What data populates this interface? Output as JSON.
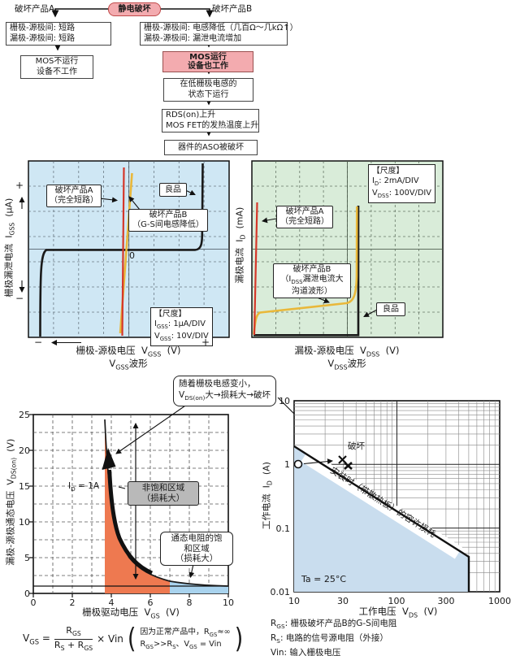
{
  "flowchart": {
    "root_label": "静电破坏",
    "branch_a_label": "破坏产品A",
    "branch_b_label": "破坏产品B",
    "box_a1": [
      "栅极-源极间: 短路",
      "漏极-源极间: 短路"
    ],
    "box_a2": [
      "MOS不运行",
      "设备不工作"
    ],
    "box_b1": [
      "栅极-源极间: 电感降低（几百Ω～几kΩ↑）",
      "漏极-源极间: 漏泄电流增加"
    ],
    "box_b2": [
      "MOS运行",
      "设备也工作"
    ],
    "box_b3": [
      "在低栅极电感的",
      "状态下运行"
    ],
    "box_b4": [
      "RDS(on)上升",
      "MOS FET的发热温度上升"
    ],
    "box_b5": "器件的ASO被破坏"
  },
  "vgss_chart": {
    "y_label": "栅极漏泄电流&nbsp;&nbsp;I<sub>GSS</sub>&nbsp;&nbsp;(μA)",
    "x_label": "栅极-源极电压&nbsp;&nbsp;V<sub>GSS</sub>&nbsp;&nbsp;(V)",
    "caption": "V<sub>GSS</sub>波形",
    "zero_label": "0",
    "plus": "+",
    "minus": "−",
    "ann_a": [
      "破坏产品A",
      "（完全短路）"
    ],
    "ann_b": [
      "破坏产品B",
      "（G-S间电感降低）"
    ],
    "good_label": "良品",
    "scale_box": [
      "【尺度】",
      "I<sub>GSS</sub>: 1μA/DIV",
      "V<sub>GSS</sub>: 10V/DIV"
    ]
  },
  "vdss_chart": {
    "y_label": "漏极电流&nbsp;&nbsp;I<sub>D</sub>&nbsp;&nbsp;(mA)",
    "x_label": "漏极-源极电压&nbsp;&nbsp;V<sub>DSS</sub>&nbsp;&nbsp;(V)",
    "caption": "V<sub>DSS</sub>波形",
    "ann_a": [
      "破坏产品A",
      "（完全短路）"
    ],
    "ann_b": [
      "破坏产品B",
      "（I<sub>DSS</sub>漏泄电流大",
      "沟道波形）"
    ],
    "good_label": "良品",
    "scale_box": [
      "【尺度】",
      "I<sub>D</sub>: 2mA/DIV",
      "V<sub>DSS</sub>: 100V/DIV"
    ]
  },
  "callout": {
    "line1": "随着栅极电感变小，",
    "line2": "V<sub>DS(on)</sub>大→损耗大→破坏"
  },
  "vdson_chart": {
    "y_label": "漏极-源极通态电压&nbsp;&nbsp;V<sub>DS(on)</sub>&nbsp;&nbsp;(V)",
    "x_label": "栅极驱动电压&nbsp;&nbsp;V<sub>GS</sub>&nbsp;&nbsp;(V)",
    "y_ticks": [
      "25",
      "20",
      "15",
      "10",
      "5",
      "0"
    ],
    "x_ticks": [
      "0",
      "2",
      "4",
      "6",
      "8",
      "10"
    ],
    "id_label": "I<sub>D</sub> = 1A",
    "region1": [
      "非饱和区域",
      "（损耗大）"
    ],
    "region2": [
      "通态电阻的饱",
      "和区域",
      "（损耗大）"
    ]
  },
  "formula": {
    "lhs": "V<sub>GS</sub> =",
    "num": "R<sub>GS</sub>",
    "den": "R<sub>S</sub> + R<sub>GS</sub>",
    "mult": "× Vin",
    "paren_open": "(",
    "paren_close": ")",
    "note1": "因为正常产品中，R<sub>GS</sub>≈∞",
    "note2": "R<sub>GS</sub>>>R<sub>S</sub>、V<sub>GS</sub> = Vin"
  },
  "soa_chart": {
    "y_label": "工作电流&nbsp;&nbsp;I<sub>D</sub>&nbsp;&nbsp;(A)",
    "x_label": "工作电压&nbsp;&nbsp;V<sub>DS</sub>&nbsp;&nbsp;(V)",
    "y_ticks": [
      "10",
      "1",
      "0.1",
      "0.01"
    ],
    "x_ticks": [
      "10",
      "30",
      "100",
      "300",
      "1000"
    ],
    "band_label": "安装时（带散热板）的容许损耗",
    "destroy_label": "破坏",
    "ta_label": "Ta = 25°C",
    "notes": [
      "R<sub>GS</sub>: 栅极破坏产品B的G-S间电阻",
      "R<sub>S</sub>: 电路的信号源电阻（外接）",
      "Vin: 输入栅极电压"
    ]
  },
  "colors": {
    "flow_pink": "#f3abaf",
    "flow_pink_border": "#c04a4a",
    "scope_blue_bg": "#cfe7f4",
    "scope_green_bg": "#d9ecd9",
    "trace_red": "#d5372a",
    "trace_yellow": "#e9b83a",
    "trace_black": "#1a1a1a",
    "region_orange": "#ee7950",
    "region_blue": "#a9d3ee",
    "soa_fill": "#c9ddee",
    "gray_note_bg": "#b9b9b9"
  },
  "chart_data": [
    {
      "id": "vgss_waveform",
      "type": "line",
      "title": "V_GSS波形",
      "xlabel": "栅极-源极电压 V_GSS (V)",
      "ylabel": "栅极漏泄电流 I_GSS (μA)",
      "scale": {
        "I_GSS": "1μA/DIV",
        "V_GSS": "10V/DIV"
      },
      "grid": "oscilloscope dashed, 8x7 divisions",
      "series": [
        {
          "name": "良品",
          "color": "#1a1a1a",
          "points_V_uA": [
            [
              -35,
              -3.5
            ],
            [
              -34,
              -0.2
            ],
            [
              -30,
              0
            ],
            [
              28,
              0
            ],
            [
              29,
              0.3
            ],
            [
              29.5,
              3.5
            ]
          ]
        },
        {
          "name": "破坏产品A（完全短路）",
          "color": "#d5372a",
          "points_V_uA": [
            [
              -2,
              -3.4
            ],
            [
              0,
              0
            ],
            [
              2,
              3.4
            ]
          ]
        },
        {
          "name": "破坏产品B（G-S间电感降低）",
          "color": "#e9b83a",
          "points_V_uA": [
            [
              -3.4,
              -3.3
            ],
            [
              0,
              0.1
            ],
            [
              1.5,
              3.1
            ]
          ]
        }
      ]
    },
    {
      "id": "vdss_waveform",
      "type": "line",
      "title": "V_DSS波形",
      "xlabel": "漏极-源极电压 V_DSS (V)",
      "ylabel": "漏极电流 I_D (mA)",
      "scale": {
        "I_D": "2mA/DIV",
        "V_DSS": "100V/DIV"
      },
      "series": [
        {
          "name": "良品",
          "color": "#1a1a1a",
          "points_V_mA": [
            [
              0,
              0
            ],
            [
              440,
              0
            ],
            [
              440,
              10.5
            ]
          ]
        },
        {
          "name": "破坏产品A（完全短路）",
          "color": "#d5372a",
          "points_V_mA": [
            [
              10,
              0
            ],
            [
              15,
              10.6
            ]
          ]
        },
        {
          "name": "破坏产品B（IDSS漏泄电流大 沟道波形）",
          "color": "#e9b83a",
          "points_V_mA": [
            [
              0,
              0
            ],
            [
              20,
              1.8
            ],
            [
              400,
              2.7
            ],
            [
              435,
              10.3
            ]
          ]
        }
      ]
    },
    {
      "id": "vdson_vs_vgs",
      "type": "line",
      "xlabel": "栅极驱动电压 V_GS (V)",
      "ylabel": "漏极-源极通态电压 V_DS(on) (V)",
      "xlim": [
        0,
        10
      ],
      "ylim": [
        0,
        25
      ],
      "condition": "I_D = 1A",
      "series": [
        {
          "name": "V_DS(on)",
          "color": "#1a1a1a",
          "points": [
            [
              3.9,
              25
            ],
            [
              4,
              21
            ],
            [
              4.2,
              15
            ],
            [
              4.5,
              10
            ],
            [
              5,
              6
            ],
            [
              5.5,
              4
            ],
            [
              6,
              2.7
            ],
            [
              6.5,
              2
            ],
            [
              7,
              1.7
            ],
            [
              8,
              1.4
            ],
            [
              9,
              1.3
            ],
            [
              10,
              1.25
            ]
          ]
        }
      ],
      "regions": [
        {
          "name": "非饱和区域（损耗大）",
          "x_range": [
            3.9,
            7
          ],
          "color": "#ee7950"
        },
        {
          "name": "通态电阻的饱和区域（损耗大）",
          "x_range": [
            7,
            10
          ],
          "color": "#a9d3ee"
        }
      ],
      "ref_line_V": 1.3
    },
    {
      "id": "soa_allowable_loss",
      "type": "line",
      "xlabel": "工作电压 V_DS (V)",
      "ylabel": "工作电流 I_D (A)",
      "xscale": "log",
      "yscale": "log",
      "xlim": [
        10,
        1000
      ],
      "ylim": [
        0.01,
        10
      ],
      "condition": "Ta = 25°C",
      "boundary_name": "安装时（带散热板）的容许损耗",
      "boundary_points": [
        [
          10,
          1.9
        ],
        [
          500,
          0.036
        ],
        [
          500,
          0.01
        ]
      ],
      "operating_point": [
        10.5,
        1.0
      ],
      "failure_points": [
        [
          29,
          1.2
        ],
        [
          34,
          0.95
        ]
      ],
      "failure_label": "破坏"
    }
  ]
}
